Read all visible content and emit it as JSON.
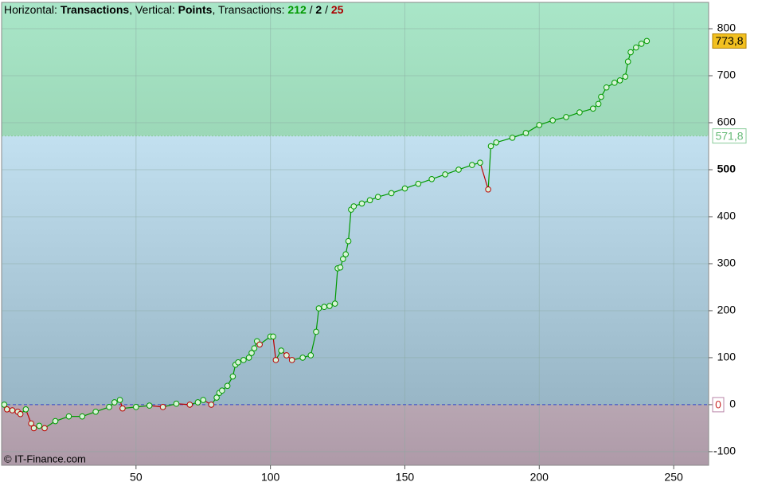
{
  "chart_data": {
    "type": "line",
    "header": [
      "Horizontal: ",
      "Transactions",
      ", Vertical: ",
      "Points",
      ", Transactions: ",
      "212",
      " / ",
      "2",
      " / ",
      "25"
    ],
    "watermark": "© IT-Finance.com",
    "x": [
      1,
      2,
      4,
      6,
      7,
      9,
      11,
      12,
      14,
      16,
      20,
      25,
      30,
      35,
      40,
      42,
      44,
      45,
      50,
      55,
      60,
      65,
      70,
      73,
      75,
      78,
      80,
      81,
      82,
      84,
      86,
      87,
      88,
      90,
      92,
      93,
      94,
      95,
      96,
      100,
      101,
      102,
      104,
      106,
      108,
      112,
      115,
      117,
      118,
      120,
      122,
      124,
      125,
      126,
      127,
      128,
      129,
      130,
      131,
      134,
      137,
      140,
      145,
      150,
      155,
      160,
      165,
      170,
      175,
      178,
      181,
      182,
      184,
      190,
      195,
      200,
      205,
      210,
      215,
      220,
      222,
      223,
      225,
      228,
      230,
      232,
      233,
      234,
      236,
      238,
      240
    ],
    "series": [
      {
        "name": "Points",
        "color": "#009900",
        "down_color": "#bb0000",
        "values": [
          0,
          -10,
          -12,
          -15,
          -20,
          -10,
          -40,
          -50,
          -45,
          -50,
          -35,
          -25,
          -25,
          -15,
          -5,
          5,
          10,
          -8,
          -5,
          -2,
          -5,
          2,
          0,
          5,
          10,
          0,
          15,
          25,
          30,
          40,
          60,
          85,
          90,
          95,
          100,
          110,
          120,
          135,
          128,
          145,
          145,
          95,
          115,
          105,
          95,
          100,
          105,
          155,
          205,
          208,
          210,
          215,
          290,
          292,
          310,
          320,
          348,
          415,
          422,
          428,
          435,
          442,
          450,
          460,
          470,
          480,
          490,
          500,
          510,
          515,
          458,
          550,
          558,
          568,
          578,
          595,
          605,
          612,
          622,
          630,
          640,
          655,
          675,
          685,
          690,
          698,
          730,
          750,
          760,
          768,
          773.8
        ]
      }
    ],
    "xlim": [
      0,
      263
    ],
    "ylim": [
      -129,
      856
    ],
    "xticks": [
      50,
      100,
      150,
      200,
      250
    ],
    "yticks": [
      -100,
      0,
      100,
      200,
      300,
      400,
      500,
      600,
      700,
      800
    ],
    "levels": [
      {
        "value": 773.8,
        "label": "773,8"
      },
      {
        "value": 571.8,
        "label": "571,8"
      },
      {
        "value": 0,
        "label": "0"
      }
    ],
    "grid": true
  }
}
